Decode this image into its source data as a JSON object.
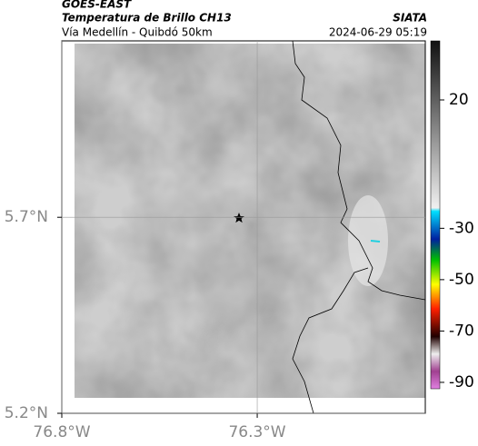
{
  "header": {
    "satellite": "GOES-EAST",
    "product": "Temperatura de Brillo CH13",
    "route": "Vía Medellín - Quibdó 50km",
    "source": "SIATA",
    "timestamp": "2024-06-29 05:19"
  },
  "map": {
    "xlim": [
      -76.8,
      -75.87
    ],
    "ylim": [
      5.2,
      6.15
    ],
    "xticks": [
      {
        "value": -76.8,
        "label": "76.8°W"
      },
      {
        "value": -76.3,
        "label": "76.3°W"
      }
    ],
    "yticks": [
      {
        "value": 5.7,
        "label": "5.7°N"
      },
      {
        "value": 5.2,
        "label": "5.2°N"
      }
    ]
  },
  "colorbar": {
    "lim": [
      43,
      -92.5
    ],
    "ticks": [
      20,
      -30,
      -50,
      -70,
      -90
    ]
  }
}
